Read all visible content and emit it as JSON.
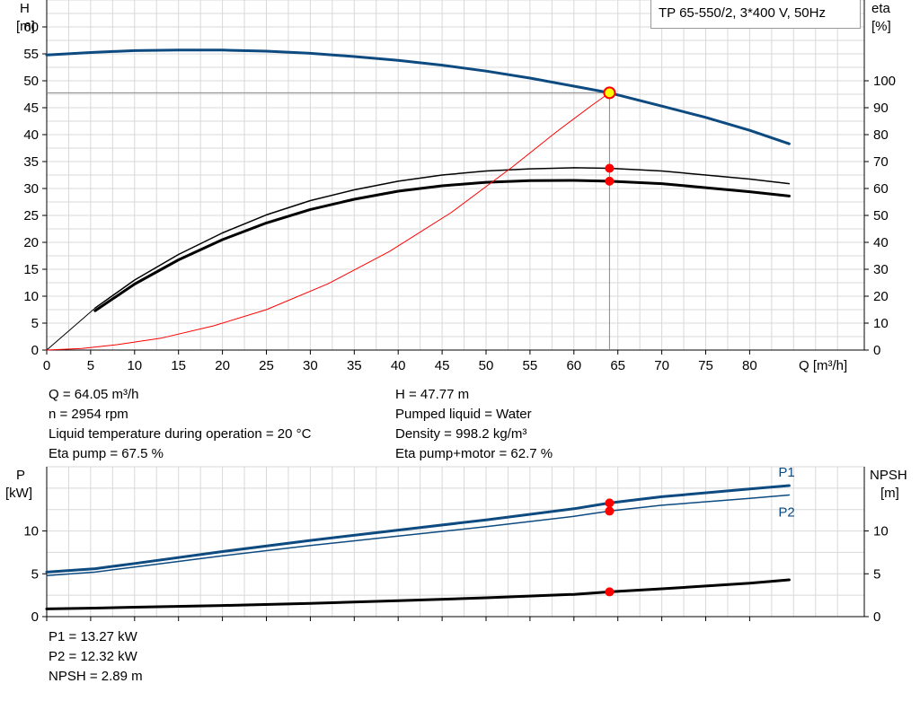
{
  "legend_title": "TP 65-550/2, 3*400 V, 50Hz",
  "colors": {
    "blue": "#0d4a80",
    "red": "#ff0000",
    "black": "#000000",
    "op_fill": "#ffff00"
  },
  "info_left": [
    "Q = 64.05 m³/h",
    "n = 2954 rpm",
    "Liquid temperature during operation = 20 °C",
    "Eta pump = 67.5 %"
  ],
  "info_right": [
    "H = 47.77 m",
    "Pumped liquid = Water",
    "Density = 998.2 kg/m³",
    "Eta pump+motor = 62.7 %"
  ],
  "info_bottom": [
    "P1 = 13.27 kW",
    "P2 = 12.32 kW",
    "NPSH = 2.89 m"
  ],
  "chart_data": [
    {
      "type": "line",
      "ylabel_left": [
        "H",
        "[m]"
      ],
      "ylabel_right": [
        "eta",
        "[%]"
      ],
      "xlabel": "Q [m³/h]",
      "xlim": [
        0,
        90
      ],
      "ylim": [
        0,
        65
      ],
      "xticks": [
        0,
        5,
        10,
        15,
        20,
        25,
        30,
        35,
        40,
        45,
        50,
        55,
        60,
        65,
        70,
        75,
        80
      ],
      "yticks_left": [
        0,
        5,
        10,
        15,
        20,
        25,
        30,
        35,
        40,
        45,
        50,
        55,
        60
      ],
      "right_axis_scale": {
        "eta_per_H_unit": 2
      },
      "yticks_right": [
        0,
        10,
        20,
        30,
        40,
        50,
        60,
        70,
        80,
        90,
        100
      ],
      "grid": true,
      "operating_point": {
        "Q": 64.05,
        "H": 47.77,
        "eta_pump": 67.5,
        "eta_pump_motor": 62.7
      },
      "series": [
        {
          "name": "H",
          "axis": "left",
          "color": "#0d4a80",
          "x": [
            0,
            5.5,
            10,
            15,
            20,
            25,
            30,
            35,
            40,
            45,
            50,
            55,
            60,
            64.05,
            70,
            75,
            80,
            84.5
          ],
          "y": [
            54.8,
            55.3,
            55.6,
            55.7,
            55.7,
            55.5,
            55.1,
            54.5,
            53.8,
            52.9,
            51.8,
            50.5,
            49.0,
            47.77,
            45.3,
            43.2,
            40.8,
            38.3
          ]
        },
        {
          "name": "eta",
          "axis": "right",
          "color": "#000000",
          "width": 1.5,
          "x": [
            5.5,
            10,
            15,
            20,
            25,
            30,
            35,
            40,
            45,
            50,
            55,
            60,
            64.05,
            70,
            75,
            80,
            84.5
          ],
          "y": [
            15.6,
            26,
            35.5,
            43.5,
            50.2,
            55.5,
            59.5,
            62.7,
            65.0,
            66.5,
            67.3,
            67.7,
            67.5,
            66.5,
            65.0,
            63.5,
            61.8
          ]
        },
        {
          "name": "eta pump+motor",
          "axis": "right",
          "color": "#000000",
          "width": 3,
          "x": [
            5.5,
            10,
            15,
            20,
            25,
            30,
            35,
            40,
            45,
            50,
            55,
            60,
            64.05,
            70,
            75,
            80,
            84.5
          ],
          "y": [
            14.6,
            24.5,
            33.5,
            41,
            47.2,
            52.2,
            56.0,
            59.0,
            61.0,
            62.3,
            62.9,
            63.0,
            62.7,
            61.8,
            60.3,
            58.8,
            57.2
          ]
        },
        {
          "name": "eta start",
          "axis": "right",
          "color": "#000000",
          "width": 1,
          "x": [
            0,
            5.5
          ],
          "y": [
            0,
            15.6
          ]
        },
        {
          "name": "system curve",
          "axis": "left",
          "color": "#ff0000",
          "width": 1,
          "x": [
            0,
            4,
            8,
            13,
            19,
            25,
            32,
            39,
            46,
            53,
            58,
            62,
            64.05
          ],
          "y": [
            0,
            0.3,
            1.0,
            2.2,
            4.5,
            7.5,
            12.3,
            18.3,
            25.5,
            34.0,
            40.5,
            45.4,
            47.77
          ]
        }
      ],
      "markers": [
        {
          "axis": "right",
          "x": 64.05,
          "y": 67.5,
          "color": "#ff0000"
        },
        {
          "axis": "right",
          "x": 64.05,
          "y": 62.7,
          "color": "#ff0000"
        }
      ]
    },
    {
      "type": "line",
      "ylabel_left": [
        "P",
        "[kW]"
      ],
      "ylabel_right": [
        "NPSH",
        "[m]"
      ],
      "xlim": [
        0,
        90
      ],
      "ylim": [
        0,
        17.5
      ],
      "xticks": [
        0,
        5,
        10,
        15,
        20,
        25,
        30,
        35,
        40,
        45,
        50,
        55,
        60,
        65,
        70,
        75,
        80
      ],
      "yticks_left": [
        0,
        5,
        10
      ],
      "yticks_right": [
        0,
        5,
        10
      ],
      "grid": true,
      "series": [
        {
          "name": "P1",
          "color": "#0d4a80",
          "width": 3,
          "x": [
            0,
            5.5,
            10,
            20,
            30,
            40,
            50,
            60,
            64.05,
            70,
            80,
            84.5
          ],
          "y": [
            5.2,
            5.6,
            6.2,
            7.6,
            8.9,
            10.1,
            11.3,
            12.6,
            13.27,
            14.0,
            14.9,
            15.3
          ],
          "label": "P1"
        },
        {
          "name": "P2",
          "color": "#0d4a80",
          "width": 1.5,
          "x": [
            0,
            5.5,
            10,
            20,
            30,
            40,
            50,
            60,
            64.05,
            70,
            80,
            84.5
          ],
          "y": [
            4.8,
            5.2,
            5.8,
            7.1,
            8.3,
            9.4,
            10.5,
            11.7,
            12.32,
            13.0,
            13.8,
            14.2
          ],
          "label": "P2"
        },
        {
          "name": "NPSH",
          "color": "#000000",
          "width": 3,
          "x": [
            0,
            5.5,
            10,
            20,
            30,
            40,
            50,
            60,
            64.05,
            70,
            80,
            84.5
          ],
          "y": [
            0.9,
            1.0,
            1.1,
            1.3,
            1.55,
            1.85,
            2.2,
            2.6,
            2.89,
            3.25,
            3.9,
            4.3
          ]
        }
      ],
      "markers": [
        {
          "x": 64.05,
          "y": 13.27,
          "color": "#ff0000"
        },
        {
          "x": 64.05,
          "y": 12.32,
          "color": "#ff0000"
        },
        {
          "x": 64.05,
          "y": 2.89,
          "color": "#ff0000"
        }
      ]
    }
  ]
}
